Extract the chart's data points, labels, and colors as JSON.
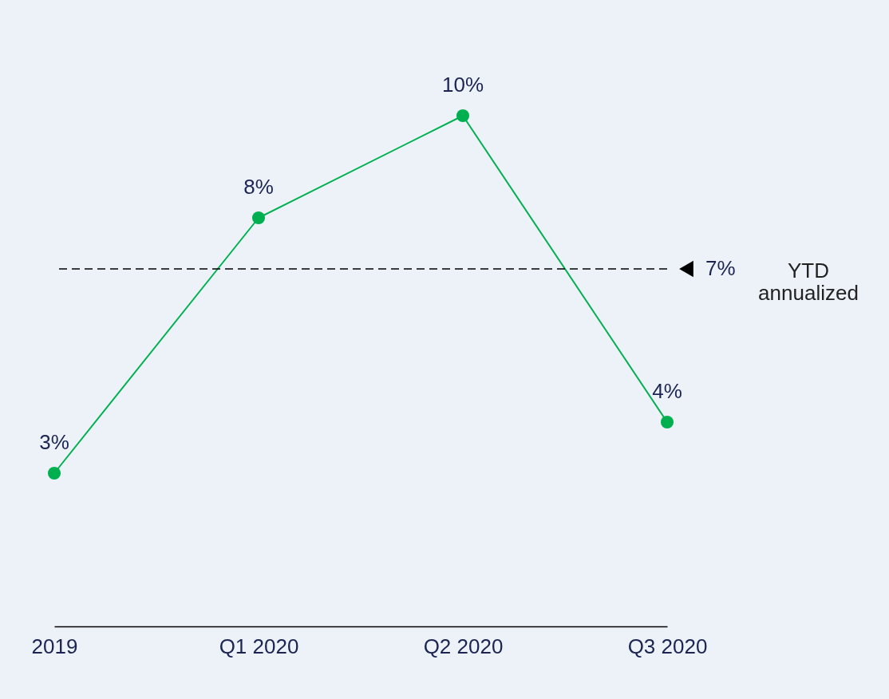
{
  "chart_data": {
    "type": "line",
    "categories": [
      "2019",
      "Q1 2020",
      "Q2 2020",
      "Q3 2020"
    ],
    "series": [
      {
        "color": "#00b050",
        "values": [
          3,
          8,
          10,
          4
        ],
        "value_labels": [
          "3%",
          "8%",
          "10%",
          "4%"
        ]
      }
    ],
    "tick_labels": "x",
    "grid": false,
    "marker": "circle",
    "line_style": "solid",
    "ref_lines": [
      {
        "axis": "y",
        "value": 7,
        "label": "7%",
        "color": "#000000",
        "line_style": "dashed"
      }
    ],
    "annotations": [
      "YTD annualized"
    ]
  }
}
